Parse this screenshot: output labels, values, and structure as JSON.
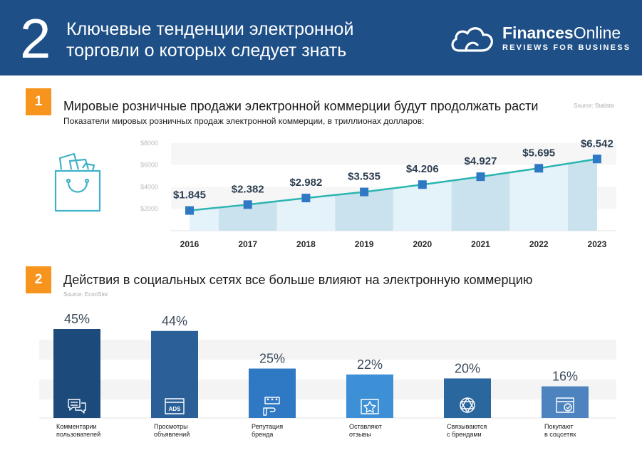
{
  "header": {
    "number": "2",
    "title_line1": "Ключевые тенденции электронной",
    "title_line2": "торговли о которых следует знать",
    "brand_part1": "Finances",
    "brand_part2": "Online",
    "tagline": "REVIEWS FOR BUSINESS",
    "icon": "cloud-logo-icon"
  },
  "section1": {
    "badge": "1",
    "title": "Мировые розничные продажи электронной коммерции будут продолжать расти",
    "subtitle": "Показатели мировых розничных продаж электронной коммерции, в триллионах долларов:",
    "source": "Source: Statista",
    "icon": "shopping-bag-icon"
  },
  "section2": {
    "badge": "2",
    "title": "Действия в социальных сетях все больше влияют на электронную коммерцию",
    "source": "Source: EconStor"
  },
  "colors": {
    "header_bg": "#1e4f87",
    "badge": "#f7941d",
    "line": "#2bb5b0",
    "marker": "#2f78c4",
    "area": "#d8ecf6",
    "bars": [
      "#1b4a7b",
      "#2a5f98",
      "#2f78c4",
      "#3d8fd6",
      "#2b679f",
      "#4d84c0"
    ]
  },
  "chart_data": [
    {
      "type": "line",
      "x": [
        "2016",
        "2017",
        "2018",
        "2019",
        "2020",
        "2021",
        "2022",
        "2023"
      ],
      "values": [
        1.845,
        2.382,
        2.982,
        3.535,
        4.206,
        4.927,
        5.695,
        6.542
      ],
      "data_labels": [
        "$1.845",
        "$2.382",
        "$2.982",
        "$3.535",
        "$4.206",
        "$4.927",
        "$5.695",
        "$6.542"
      ],
      "y_ticks": [
        "$2000",
        "$4000",
        "$6000",
        "$8000"
      ],
      "ylim": [
        0,
        8
      ],
      "area_fill": true,
      "grid": "bands"
    },
    {
      "type": "bar",
      "categories": [
        "Комментарии пользователей",
        "Просмотры объявлений",
        "Репутация бренда",
        "Оставляют отзывы",
        "Связываются с брендами",
        "Покупают в соцсетях"
      ],
      "category_lines": [
        [
          "Комментарии",
          "пользователей"
        ],
        [
          "Просмотры",
          "объявлений"
        ],
        [
          "Репутация",
          "бренда"
        ],
        [
          "Оставляют",
          "отзывы"
        ],
        [
          "Связываются",
          "с брендами"
        ],
        [
          "Покупают",
          "в соцсетях"
        ]
      ],
      "values": [
        45,
        44,
        25,
        22,
        20,
        16
      ],
      "data_labels": [
        "45%",
        "44%",
        "25%",
        "22%",
        "20%",
        "16%"
      ],
      "icons": [
        "chat-bubbles-icon",
        "ads-icon",
        "rating-hand-icon",
        "star-review-icon",
        "network-icon",
        "shop-icon"
      ],
      "ads_text": "ADS",
      "ylim": [
        0,
        45
      ]
    }
  ]
}
